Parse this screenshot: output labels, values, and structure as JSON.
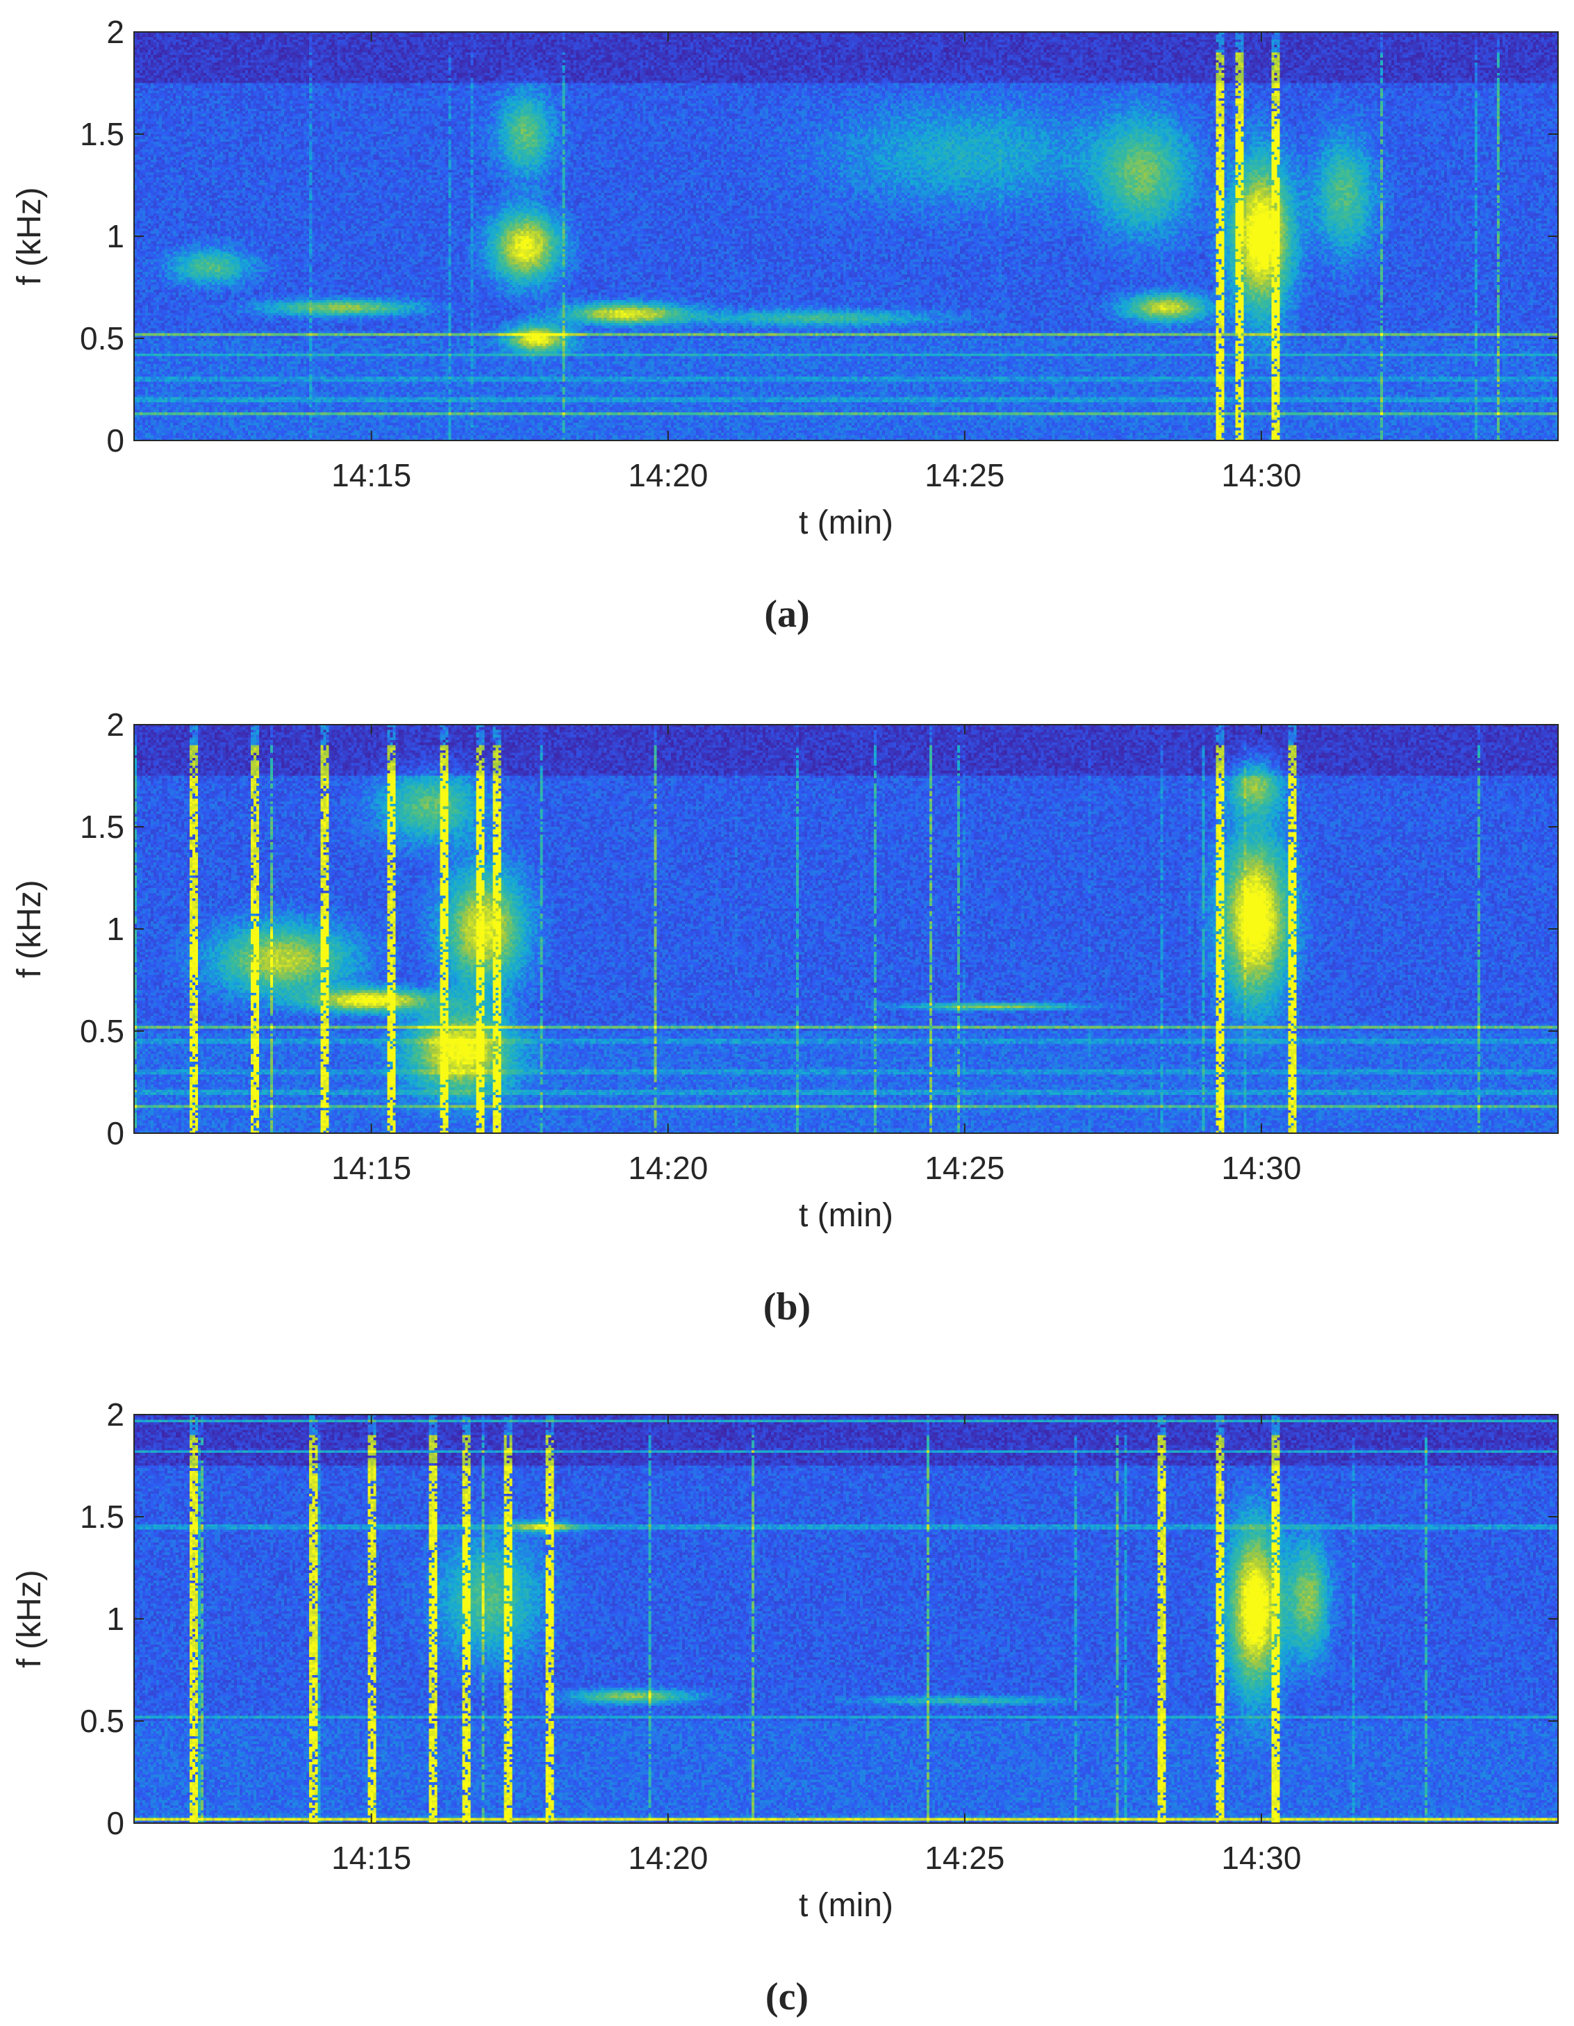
{
  "chart_data": [
    {
      "type": "heatmap",
      "panel_label": "(a)",
      "xlabel": "t (min)",
      "ylabel": "f (kHz)",
      "xlim": [
        "14:11",
        "14:35"
      ],
      "ylim": [
        0,
        2
      ],
      "x_ticks": [
        "14:15",
        "14:20",
        "14:25",
        "14:30"
      ],
      "y_ticks": [
        "0",
        "0.5",
        "1",
        "1.5",
        "2"
      ],
      "colormap": [
        "#3e26a8",
        "#2e5bf3",
        "#15a9d6",
        "#3ebc95",
        "#a6c93e",
        "#f9fb15"
      ],
      "background_level": 0.08,
      "bands": [
        {
          "f": 0.52,
          "level": 0.7
        },
        {
          "f": 0.13,
          "level": 0.55
        },
        {
          "f": 0.2,
          "level": 0.35
        },
        {
          "f": 0.3,
          "level": 0.3
        },
        {
          "f": 0.42,
          "level": 0.3
        }
      ],
      "hotspots": [
        {
          "t": 12.3,
          "f": 0.85,
          "dt": 1.2,
          "df": 0.15,
          "level": 0.45
        },
        {
          "t": 17.6,
          "f": 0.95,
          "dt": 1.0,
          "df": 0.3,
          "level": 0.85
        },
        {
          "t": 17.6,
          "f": 1.5,
          "dt": 0.8,
          "df": 0.35,
          "level": 0.5
        },
        {
          "t": 17.8,
          "f": 0.5,
          "dt": 0.9,
          "df": 0.12,
          "level": 0.85
        },
        {
          "t": 19.3,
          "f": 0.62,
          "dt": 1.8,
          "df": 0.09,
          "level": 0.8
        },
        {
          "t": 14.5,
          "f": 0.65,
          "dt": 2.2,
          "df": 0.07,
          "level": 0.6
        },
        {
          "t": 22.5,
          "f": 0.6,
          "dt": 3.5,
          "df": 0.07,
          "level": 0.4
        },
        {
          "t": 25.0,
          "f": 1.4,
          "dt": 4.0,
          "df": 0.45,
          "level": 0.25
        },
        {
          "t": 30.0,
          "f": 1.0,
          "dt": 0.9,
          "df": 0.65,
          "level": 1.0
        },
        {
          "t": 28.4,
          "f": 0.65,
          "dt": 1.2,
          "df": 0.12,
          "level": 0.75
        },
        {
          "t": 28.0,
          "f": 1.3,
          "dt": 1.4,
          "df": 0.5,
          "level": 0.5
        },
        {
          "t": 31.4,
          "f": 1.2,
          "dt": 0.9,
          "df": 0.5,
          "level": 0.45
        }
      ],
      "impulse_density": 0.25,
      "impulse_times": [
        29.3,
        29.6,
        30.2
      ]
    },
    {
      "type": "heatmap",
      "panel_label": "(b)",
      "xlabel": "t (min)",
      "ylabel": "f (kHz)",
      "xlim": [
        "14:11",
        "14:35"
      ],
      "ylim": [
        0,
        2
      ],
      "x_ticks": [
        "14:15",
        "14:20",
        "14:25",
        "14:30"
      ],
      "y_ticks": [
        "0",
        "0.5",
        "1",
        "1.5",
        "2"
      ],
      "colormap": [
        "#3e26a8",
        "#2e5bf3",
        "#15a9d6",
        "#3ebc95",
        "#a6c93e",
        "#f9fb15"
      ],
      "background_level": 0.08,
      "bands": [
        {
          "f": 0.52,
          "level": 0.65
        },
        {
          "f": 0.13,
          "level": 0.55
        },
        {
          "f": 0.2,
          "level": 0.35
        },
        {
          "f": 0.3,
          "level": 0.3
        },
        {
          "f": 0.45,
          "level": 0.3
        }
      ],
      "hotspots": [
        {
          "t": 13.5,
          "f": 0.85,
          "dt": 2.0,
          "df": 0.3,
          "level": 0.7
        },
        {
          "t": 15.0,
          "f": 0.65,
          "dt": 1.8,
          "df": 0.1,
          "level": 0.9
        },
        {
          "t": 16.9,
          "f": 1.0,
          "dt": 1.2,
          "df": 0.5,
          "level": 0.8
        },
        {
          "t": 16.5,
          "f": 0.4,
          "dt": 1.5,
          "df": 0.35,
          "level": 0.85
        },
        {
          "t": 16.0,
          "f": 1.6,
          "dt": 1.5,
          "df": 0.3,
          "level": 0.5
        },
        {
          "t": 25.5,
          "f": 0.62,
          "dt": 2.5,
          "df": 0.03,
          "level": 0.6
        },
        {
          "t": 29.9,
          "f": 1.05,
          "dt": 1.0,
          "df": 0.7,
          "level": 1.0
        },
        {
          "t": 29.9,
          "f": 1.7,
          "dt": 0.8,
          "df": 0.25,
          "level": 0.55
        }
      ],
      "impulse_density": 0.55,
      "impulse_times": [
        12.0,
        13.0,
        14.2,
        15.3,
        16.2,
        16.8,
        17.1,
        29.3,
        30.5
      ]
    },
    {
      "type": "heatmap",
      "panel_label": "(c)",
      "xlabel": "t (min)",
      "ylabel": "f (kHz)",
      "xlim": [
        "14:11",
        "14:35"
      ],
      "ylim": [
        0,
        2
      ],
      "x_ticks": [
        "14:15",
        "14:20",
        "14:25",
        "14:30"
      ],
      "y_ticks": [
        "0",
        "0.5",
        "1",
        "1.5",
        "2"
      ],
      "colormap": [
        "#3e26a8",
        "#2e5bf3",
        "#15a9d6",
        "#3ebc95",
        "#a6c93e",
        "#f9fb15"
      ],
      "background_level": 0.08,
      "bands": [
        {
          "f": 0.02,
          "level": 0.95
        },
        {
          "f": 1.45,
          "level": 0.45
        },
        {
          "f": 1.82,
          "level": 0.45
        },
        {
          "f": 1.97,
          "level": 0.5
        },
        {
          "f": 0.52,
          "level": 0.3
        }
      ],
      "hotspots": [
        {
          "t": 17.0,
          "f": 1.1,
          "dt": 1.5,
          "df": 0.5,
          "level": 0.45
        },
        {
          "t": 19.4,
          "f": 0.62,
          "dt": 1.8,
          "df": 0.06,
          "level": 0.6
        },
        {
          "t": 17.9,
          "f": 1.45,
          "dt": 1.0,
          "df": 0.05,
          "level": 0.6
        },
        {
          "t": 29.9,
          "f": 1.05,
          "dt": 0.8,
          "df": 0.7,
          "level": 1.0
        },
        {
          "t": 30.8,
          "f": 1.1,
          "dt": 0.6,
          "df": 0.5,
          "level": 0.6
        },
        {
          "t": 25.0,
          "f": 0.6,
          "dt": 3.0,
          "df": 0.04,
          "level": 0.35
        }
      ],
      "impulse_density": 0.7,
      "impulse_times": [
        12.0,
        14.0,
        15.0,
        16.0,
        16.6,
        17.3,
        18.0,
        28.3,
        29.3,
        30.2
      ]
    }
  ]
}
